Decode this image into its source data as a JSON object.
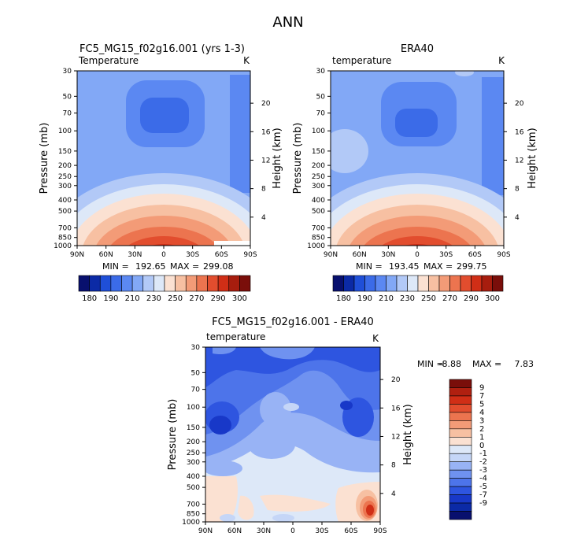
{
  "page": {
    "title": "ANN"
  },
  "colors": {
    "abs_scale": [
      "#08106e",
      "#0b2aa6",
      "#1f4fd8",
      "#3b6be8",
      "#5b88f2",
      "#82a8f6",
      "#b2c9f7",
      "#dde8f8",
      "#fbe1d2",
      "#f7c0a2",
      "#f39b77",
      "#ec744f",
      "#e24d2e",
      "#d02e16",
      "#a71d0e",
      "#7a0e0a"
    ],
    "diff_scale": [
      "#08106e",
      "#0b2aa6",
      "#1838c8",
      "#2e55e0",
      "#4d74ea",
      "#6f92f0",
      "#98b3f5",
      "#c5d6f7",
      "#dde8f8",
      "#fbe1d2",
      "#f7c0a2",
      "#f39b77",
      "#ec744f",
      "#e24d2e",
      "#d02e16",
      "#b02010",
      "#7a0e0a"
    ]
  },
  "chart_data": [
    {
      "type": "heatmap",
      "title": "FC5_MG15_f02g16.001 (yrs 1-3)",
      "subtitle_left": "Temperature",
      "subtitle_right": "K",
      "ylabel": "Pressure (mb)",
      "ylabel_right": "Height (km)",
      "x_ticks": [
        "90N",
        "60N",
        "30N",
        "0",
        "30S",
        "60S",
        "90S"
      ],
      "y_ticks": [
        "30",
        "50",
        "70",
        "100",
        "150",
        "200",
        "250",
        "300",
        "400",
        "500",
        "700",
        "850",
        "1000"
      ],
      "y_ticks_right": [
        "20",
        "16",
        "12",
        "8",
        "4"
      ],
      "xlim": [
        -90,
        90
      ],
      "ylim": [
        1000,
        30
      ],
      "stats": {
        "min_label": "MIN =",
        "min": "192.65",
        "max_label": "MAX =",
        "max": "299.08"
      }
    },
    {
      "type": "heatmap",
      "title": "ERA40",
      "subtitle_left": "temperature",
      "subtitle_right": "K",
      "ylabel": "Pressure (mb)",
      "ylabel_right": "Height (km)",
      "x_ticks": [
        "90N",
        "60N",
        "30N",
        "0",
        "30S",
        "60S",
        "90S"
      ],
      "y_ticks": [
        "30",
        "50",
        "70",
        "100",
        "150",
        "200",
        "250",
        "300",
        "400",
        "500",
        "700",
        "850",
        "1000"
      ],
      "y_ticks_right": [
        "20",
        "16",
        "12",
        "8",
        "4"
      ],
      "xlim": [
        -90,
        90
      ],
      "ylim": [
        1000,
        30
      ],
      "stats": {
        "min_label": "MIN =",
        "min": "193.45",
        "max_label": "MAX =",
        "max": "299.75"
      }
    },
    {
      "type": "heatmap",
      "title": "FC5_MG15_f02g16.001 - ERA40",
      "subtitle_left": "temperature",
      "subtitle_right": "K",
      "ylabel": "Pressure (mb)",
      "ylabel_right": "Height (km)",
      "x_ticks": [
        "90N",
        "60N",
        "30N",
        "0",
        "30S",
        "60S",
        "90S"
      ],
      "y_ticks": [
        "30",
        "50",
        "70",
        "100",
        "150",
        "200",
        "250",
        "300",
        "400",
        "500",
        "700",
        "850",
        "1000"
      ],
      "y_ticks_right": [
        "20",
        "16",
        "12",
        "8",
        "4"
      ],
      "xlim": [
        -90,
        90
      ],
      "ylim": [
        1000,
        30
      ],
      "stats": {
        "min_label": "MIN =",
        "min": "-8.88",
        "max_label": "MAX =",
        "max": "7.83"
      }
    }
  ],
  "colorbars": {
    "abs": {
      "labels": [
        "180",
        "190",
        "210",
        "230",
        "250",
        "270",
        "290",
        "300"
      ]
    },
    "diff": {
      "labels": [
        "9",
        "7",
        "5",
        "4",
        "3",
        "2",
        "1",
        "0",
        "-1",
        "-2",
        "-3",
        "-4",
        "-5",
        "-7",
        "-9"
      ]
    }
  }
}
